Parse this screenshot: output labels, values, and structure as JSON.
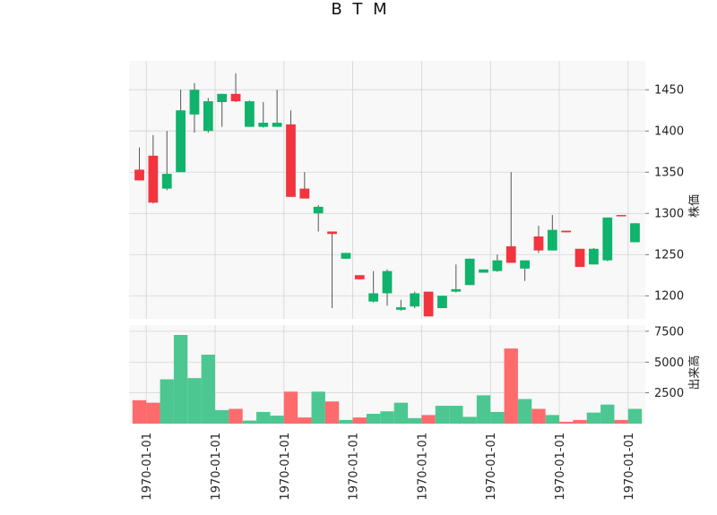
{
  "chart_data": {
    "type": "candlestick",
    "title": "B T M",
    "panels": [
      {
        "name": "price",
        "ylabel": "株価",
        "ylim": [
          1172,
          1485
        ],
        "yticks": [
          1200,
          1250,
          1300,
          1350,
          1400,
          1450
        ]
      },
      {
        "name": "volume",
        "ylabel": "出来高",
        "ylim": [
          0,
          8000
        ],
        "yticks": [
          2500,
          5000,
          7500
        ]
      }
    ],
    "x_tick_labels": [
      "1970-01-01",
      "1970-01-01",
      "1970-01-01",
      "1970-01-01",
      "1970-01-01",
      "1970-01-01",
      "1970-01-01",
      "1970-01-01"
    ],
    "x_tick_positions": [
      0.5,
      5.5,
      10.5,
      15.5,
      20.5,
      25.5,
      30.5,
      35.5
    ],
    "grid": true,
    "colors": {
      "up": "#0fb36b",
      "down": "#f2343f",
      "up_volume": "#4cc791",
      "down_volume": "#fd6b6c",
      "wick": "#555555",
      "panel_bg": "#f8f8f8",
      "grid": "#d3d3d3"
    },
    "candles": [
      {
        "open": 1353,
        "high": 1380,
        "low": 1340,
        "close": 1340,
        "volume": 1900
      },
      {
        "open": 1370,
        "high": 1395,
        "low": 1312,
        "close": 1313,
        "volume": 1700
      },
      {
        "open": 1330,
        "high": 1400,
        "low": 1328,
        "close": 1348,
        "volume": 3600
      },
      {
        "open": 1350,
        "high": 1450,
        "low": 1350,
        "close": 1425,
        "volume": 7200
      },
      {
        "open": 1420,
        "high": 1458,
        "low": 1398,
        "close": 1450,
        "volume": 3700
      },
      {
        "open": 1400,
        "high": 1440,
        "low": 1398,
        "close": 1436,
        "volume": 5600
      },
      {
        "open": 1435,
        "high": 1445,
        "low": 1405,
        "close": 1445,
        "volume": 1100
      },
      {
        "open": 1445,
        "high": 1470,
        "low": 1435,
        "close": 1436,
        "volume": 1200
      },
      {
        "open": 1405,
        "high": 1437,
        "low": 1405,
        "close": 1436,
        "volume": 250
      },
      {
        "open": 1405,
        "high": 1435,
        "low": 1404,
        "close": 1410,
        "volume": 950
      },
      {
        "open": 1405,
        "high": 1450,
        "low": 1405,
        "close": 1410,
        "volume": 650
      },
      {
        "open": 1408,
        "high": 1425,
        "low": 1320,
        "close": 1320,
        "volume": 2600
      },
      {
        "open": 1330,
        "high": 1350,
        "low": 1318,
        "close": 1318,
        "volume": 500
      },
      {
        "open": 1300,
        "high": 1310,
        "low": 1278,
        "close": 1308,
        "volume": 2600
      },
      {
        "open": 1278,
        "high": 1278,
        "low": 1185,
        "close": 1275,
        "volume": 1800
      },
      {
        "open": 1245,
        "high": 1252,
        "low": 1245,
        "close": 1252,
        "volume": 300
      },
      {
        "open": 1225,
        "high": 1225,
        "low": 1220,
        "close": 1220,
        "volume": 500
      },
      {
        "open": 1193,
        "high": 1230,
        "low": 1192,
        "close": 1203,
        "volume": 800
      },
      {
        "open": 1203,
        "high": 1232,
        "low": 1188,
        "close": 1230,
        "volume": 1000
      },
      {
        "open": 1183,
        "high": 1195,
        "low": 1182,
        "close": 1186,
        "volume": 1700
      },
      {
        "open": 1187,
        "high": 1205,
        "low": 1185,
        "close": 1203,
        "volume": 450
      },
      {
        "open": 1205,
        "high": 1205,
        "low": 1175,
        "close": 1175,
        "volume": 700
      },
      {
        "open": 1185,
        "high": 1200,
        "low": 1185,
        "close": 1200,
        "volume": 1450
      },
      {
        "open": 1205,
        "high": 1238,
        "low": 1204,
        "close": 1208,
        "volume": 1450
      },
      {
        "open": 1213,
        "high": 1245,
        "low": 1213,
        "close": 1245,
        "volume": 550
      },
      {
        "open": 1228,
        "high": 1232,
        "low": 1228,
        "close": 1232,
        "volume": 2300
      },
      {
        "open": 1230,
        "high": 1250,
        "low": 1229,
        "close": 1243,
        "volume": 950
      },
      {
        "open": 1260,
        "high": 1350,
        "low": 1240,
        "close": 1240,
        "volume": 6100
      },
      {
        "open": 1233,
        "high": 1243,
        "low": 1218,
        "close": 1243,
        "volume": 2000
      },
      {
        "open": 1272,
        "high": 1285,
        "low": 1252,
        "close": 1255,
        "volume": 1200
      },
      {
        "open": 1255,
        "high": 1298,
        "low": 1255,
        "close": 1280,
        "volume": 700
      },
      {
        "open": 1279,
        "high": 1279,
        "low": 1277,
        "close": 1277,
        "volume": 150
      },
      {
        "open": 1257,
        "high": 1257,
        "low": 1235,
        "close": 1235,
        "volume": 300
      },
      {
        "open": 1238,
        "high": 1258,
        "low": 1238,
        "close": 1257,
        "volume": 900
      },
      {
        "open": 1243,
        "high": 1295,
        "low": 1242,
        "close": 1295,
        "volume": 1550
      },
      {
        "open": 1298,
        "high": 1298,
        "low": 1297,
        "close": 1297,
        "volume": 300
      },
      {
        "open": 1265,
        "high": 1288,
        "low": 1265,
        "close": 1288,
        "volume": 1200
      }
    ]
  }
}
